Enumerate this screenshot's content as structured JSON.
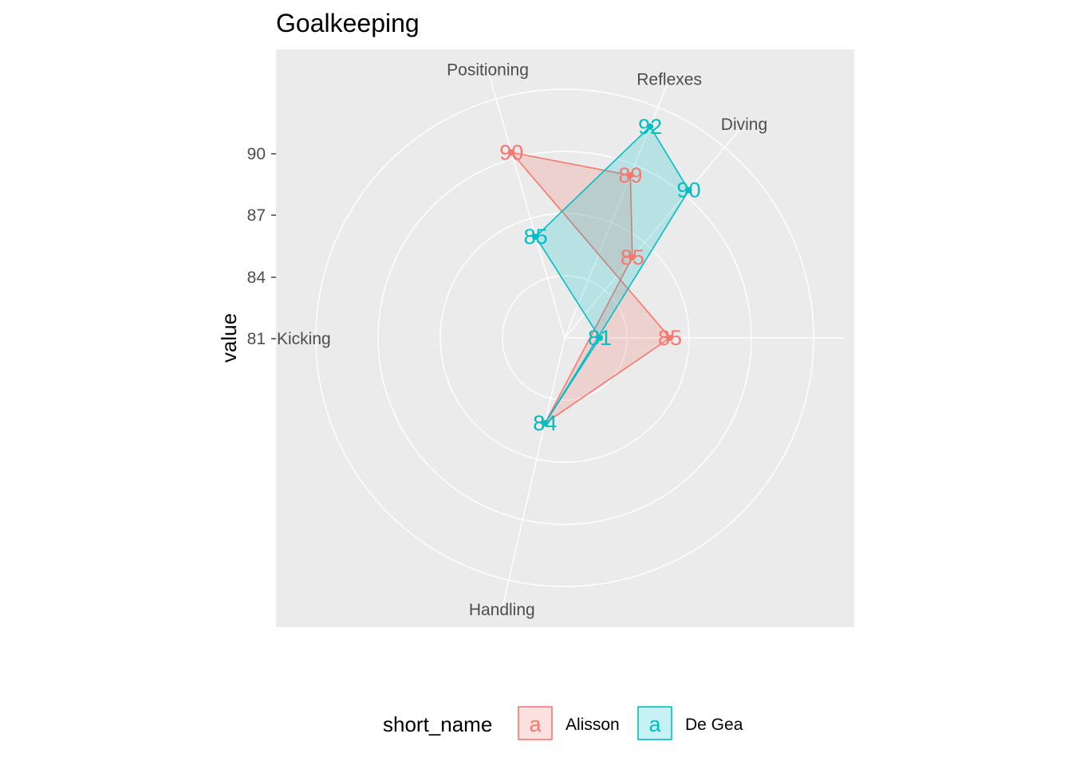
{
  "chart_data": {
    "type": "radar",
    "title": "Goalkeeping",
    "ylabel": "value",
    "y_ticks": [
      90,
      87,
      84,
      81
    ],
    "axes": [
      "Positioning",
      "Reflexes",
      "Diving",
      "Handling",
      "Kicking"
    ],
    "legend": {
      "title": "short_name",
      "position": "bottom",
      "key_glyph": "a"
    },
    "series": [
      {
        "name": "Alisson",
        "color": "#F8766D",
        "values": {
          "Positioning": 90,
          "Reflexes": 89,
          "Diving": 85,
          "Handling": 84,
          "Kicking": 85
        }
      },
      {
        "name": "De Gea",
        "color": "#00BFC4",
        "values": {
          "Positioning": 85,
          "Reflexes": 92,
          "Diving": 90,
          "Handling": 84,
          "Kicking": 81
        }
      }
    ],
    "grid": true,
    "panel_background": "#EBEBEB"
  }
}
